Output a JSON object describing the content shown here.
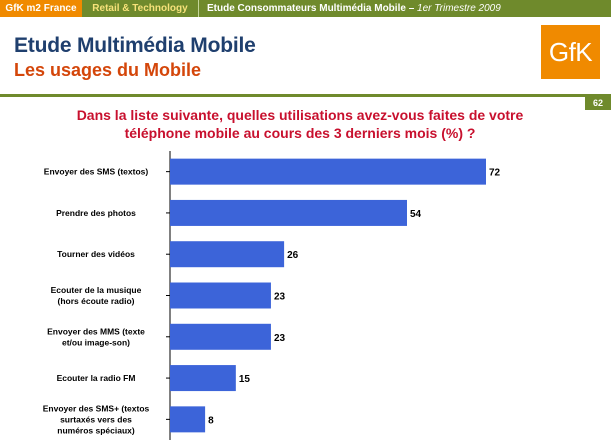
{
  "header": {
    "brand": "GfK m2 France",
    "section": "Retail & Technology",
    "study": "Etude Consommateurs Multimédia Mobile –",
    "quarter": "1er Trimestre 2009"
  },
  "title": "Etude Multimédia Mobile",
  "subtitle": "Les usages du Mobile",
  "logo_text": "GfK",
  "page_number": "62",
  "question_line1": "Dans la liste suivante, quelles utilisations avez-vous faites de votre",
  "question_line2": "téléphone mobile au cours des 3 derniers mois (%) ?",
  "colors": {
    "bar": "#3c64d9",
    "header_green": "#6f8a2c",
    "brand_orange": "#f08a00",
    "title_blue": "#1f3f6e",
    "subtitle_orange": "#d4460a",
    "question_red": "#c8102e"
  },
  "chart_data": {
    "type": "bar",
    "orientation": "horizontal",
    "categories": [
      [
        "Envoyer des SMS (textos)"
      ],
      [
        "Prendre des photos"
      ],
      [
        "Tourner des vidéos"
      ],
      [
        "Ecouter de la musique",
        "(hors écoute radio)"
      ],
      [
        "Envoyer des MMS  (texte",
        "et/ou image-son)"
      ],
      [
        "Ecouter la radio FM"
      ],
      [
        "Envoyer des SMS+ (textos",
        "surtaxés vers des",
        "numéros spéciaux)"
      ]
    ],
    "values": [
      72,
      54,
      26,
      23,
      23,
      15,
      8
    ],
    "xlim": [
      0,
      100
    ],
    "grid": false
  }
}
